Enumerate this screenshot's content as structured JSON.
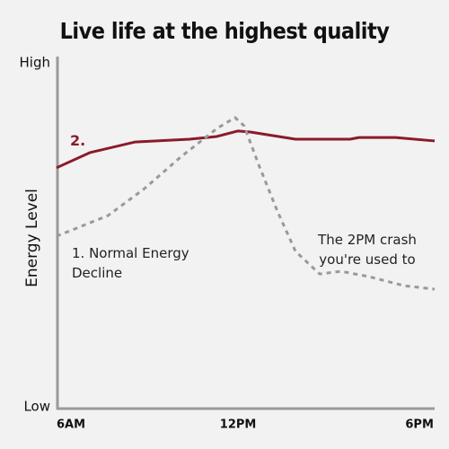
{
  "chart_data": {
    "type": "line",
    "title": "Live life at the highest quality",
    "y_label": "Energy Level",
    "annotation": "The 2PM crash you're used to",
    "xlim": [
      6,
      18.5
    ],
    "ylim": [
      0,
      100
    ],
    "xticks": [
      {
        "value": 6,
        "label": "6AM"
      },
      {
        "value": 12,
        "label": "12PM"
      },
      {
        "value": 18,
        "label": "6PM"
      }
    ],
    "yticks": [
      {
        "value": 0,
        "label": "Low"
      },
      {
        "value": 100,
        "label": "High"
      }
    ],
    "series": [
      {
        "name": "2.",
        "color": "#8b1a2b",
        "dashed": false,
        "x": [
          6,
          7.1,
          8.6,
          10.4,
          11.3,
          12,
          12.4,
          13.9,
          15.7,
          16,
          17.2,
          18.5
        ],
        "values": [
          69.5,
          73.9,
          77,
          77.8,
          78.6,
          80.2,
          79.9,
          77.8,
          77.8,
          78.3,
          78.3,
          77.3
        ]
      },
      {
        "name": "1. Normal Energy Decline",
        "color": "#999999",
        "dashed": true,
        "x": [
          6,
          7.7,
          8.9,
          10.1,
          11.3,
          11.9,
          12.2,
          12.7,
          13.3,
          13.9,
          14.7,
          15.4,
          16.3,
          17.5,
          18.5
        ],
        "values": [
          49.6,
          55.6,
          63.4,
          72.6,
          80.9,
          84.1,
          81.7,
          70,
          56.9,
          45.2,
          38.6,
          39.4,
          37.9,
          35.2,
          34.2
        ]
      }
    ]
  }
}
